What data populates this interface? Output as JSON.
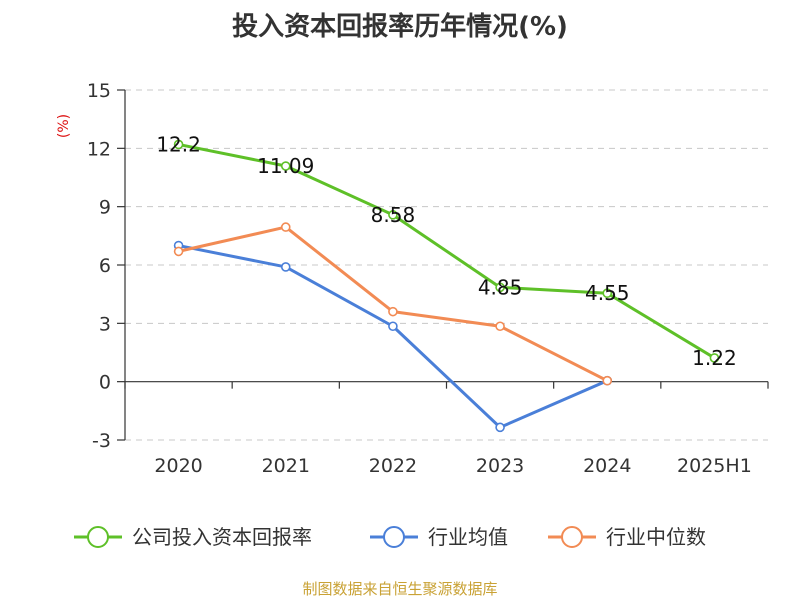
{
  "title": "投入资本回报率历年情况(%)",
  "source_note": "制图数据来自恒生聚源数据库",
  "chart_data": {
    "type": "line",
    "title": "投入资本回报率历年情况(%)",
    "ylabel": "(%)",
    "xlabel": "",
    "categories": [
      "2020",
      "2021",
      "2022",
      "2023",
      "2024",
      "2025H1"
    ],
    "ylim": [
      -3,
      15
    ],
    "yticks": [
      -3,
      0,
      3,
      6,
      9,
      12,
      15
    ],
    "ytick_labels": [
      "-3",
      "0",
      "3",
      "6",
      "9",
      "12",
      "15"
    ],
    "grid": true,
    "legend_position": "bottom",
    "series": [
      {
        "name": "公司投入资本回报率",
        "color": "#5ec028",
        "values": [
          12.2,
          11.09,
          8.58,
          4.85,
          4.55,
          1.22
        ],
        "labels": [
          "12.2",
          "11.09",
          "8.58",
          "4.85",
          "4.55",
          "1.22"
        ]
      },
      {
        "name": "行业均值",
        "color": "#4a7fd8",
        "values": [
          7.0,
          5.9,
          2.85,
          -2.35,
          0.05,
          null
        ]
      },
      {
        "name": "行业中位数",
        "color": "#f28b54",
        "values": [
          6.7,
          7.95,
          3.6,
          2.85,
          0.05,
          null
        ]
      }
    ]
  }
}
